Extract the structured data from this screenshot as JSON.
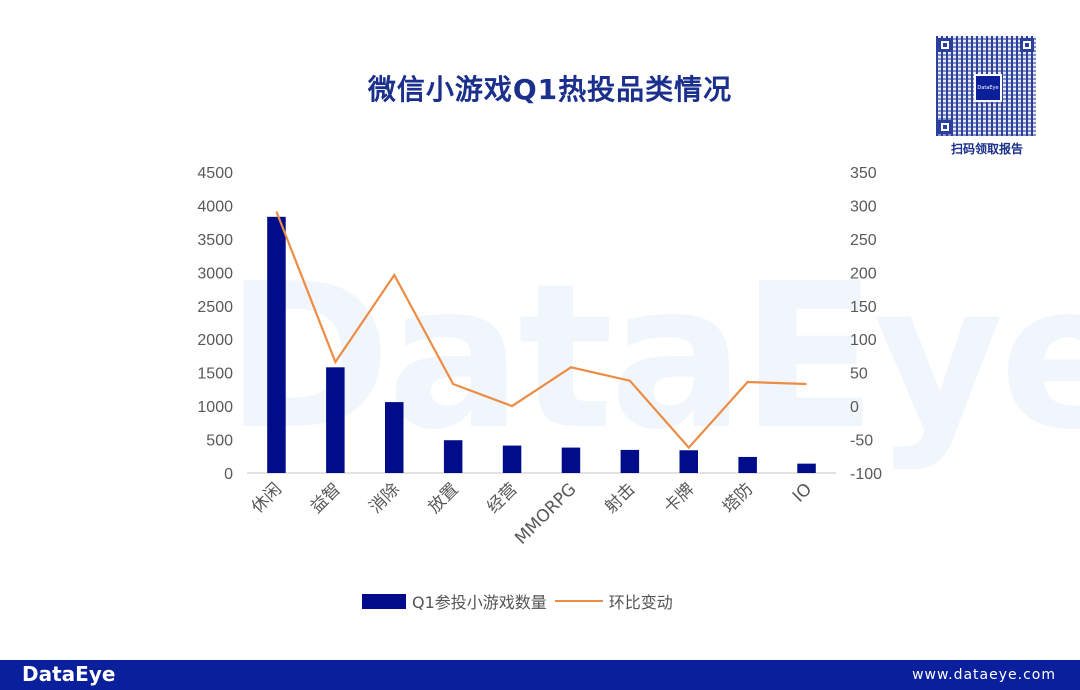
{
  "title": "微信小游戏Q1热投品类情况",
  "watermark": "DataEye",
  "qr": {
    "logo_text": "DataEye",
    "caption": "扫码领取报告"
  },
  "footer": {
    "logo": "DataEye",
    "url": "www.dataeye.com"
  },
  "legend": {
    "bar_label": "Q1参投小游戏数量",
    "line_label": "环比变动"
  },
  "colors": {
    "bar": "#000c8a",
    "line": "#ed8c45",
    "title": "#1b2f8c",
    "footer": "#0a1f9c",
    "tick_text": "#595959",
    "axis": "#d9d9d9"
  },
  "chart_data": {
    "type": "bar",
    "title": "微信小游戏Q1热投品类情况",
    "categories": [
      "休闲",
      "益智",
      "消除",
      "放置",
      "经营",
      "MMORPG",
      "射击",
      "卡牌",
      "塔防",
      "IO"
    ],
    "series": [
      {
        "name": "Q1参投小游戏数量",
        "type": "bar",
        "axis": "left",
        "values": [
          3830,
          1580,
          1060,
          490,
          410,
          380,
          345,
          340,
          240,
          140
        ]
      },
      {
        "name": "环比变动",
        "type": "line",
        "axis": "right",
        "values": [
          291,
          66,
          196,
          33,
          0,
          58,
          38,
          -62,
          36,
          33
        ]
      }
    ],
    "xlabel": "",
    "ylabel": "",
    "ylim": [
      0,
      4500
    ],
    "yticks": [
      0,
      500,
      1000,
      1500,
      2000,
      2500,
      3000,
      3500,
      4000,
      4500
    ],
    "y2lim": [
      -100,
      350
    ],
    "y2ticks": [
      -100,
      -50,
      0,
      50,
      100,
      150,
      200,
      250,
      300,
      350
    ],
    "grid": false,
    "legend_position": "bottom"
  }
}
